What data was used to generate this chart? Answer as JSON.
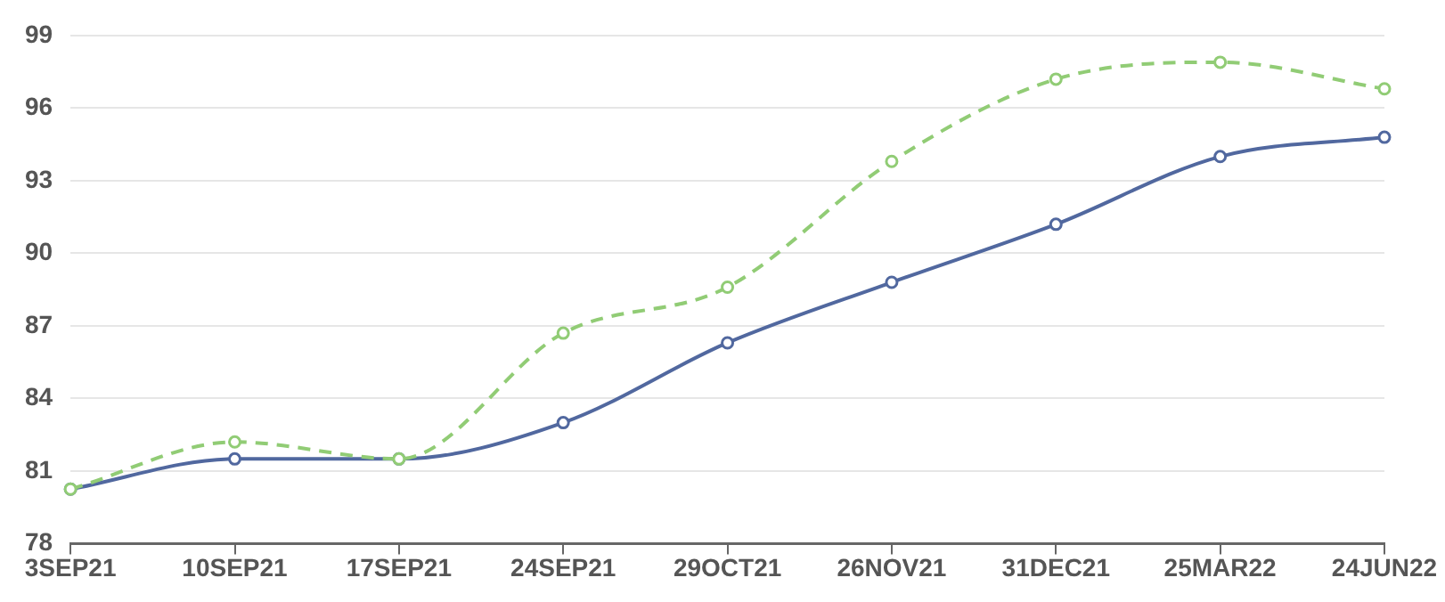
{
  "chart_data": {
    "type": "line",
    "categories": [
      "3SEP21",
      "10SEP21",
      "17SEP21",
      "24SEP21",
      "29OCT21",
      "26NOV21",
      "31DEC21",
      "25MAR22",
      "24JUN22"
    ],
    "series": [
      {
        "color": "#51689f",
        "line_style": "solid",
        "values": [
          80.25,
          81.5,
          81.5,
          83.0,
          86.3,
          88.8,
          91.2,
          94.0,
          94.8
        ]
      },
      {
        "color": "#91cc75",
        "line_style": "dashed",
        "values": [
          80.25,
          82.2,
          81.5,
          86.7,
          88.6,
          93.8,
          97.2,
          97.9,
          96.8
        ]
      }
    ],
    "ylim": [
      78,
      99
    ],
    "yticks": [
      78,
      81,
      84,
      87,
      90,
      93,
      96,
      99
    ],
    "grid": "y",
    "legend": false,
    "marker": "circle"
  }
}
